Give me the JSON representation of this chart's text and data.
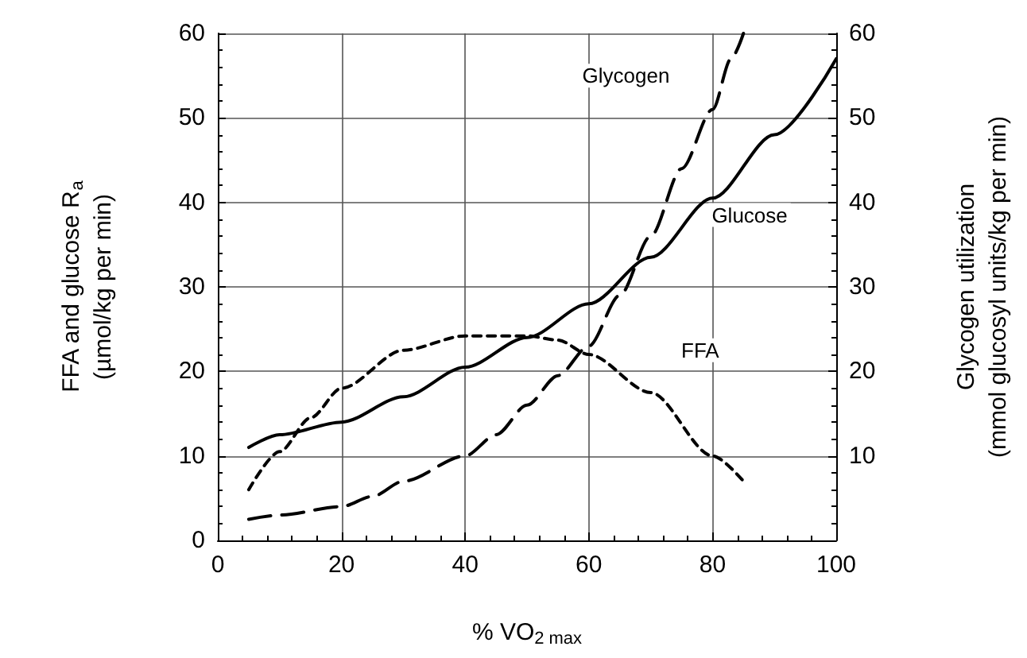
{
  "chart_data": {
    "type": "line",
    "xlabel": "% VO$_{2 max}$",
    "ylabel": "FFA and glucose R$_{a}$\n(µmol/kg per min)",
    "y2label": "Glycogen utilization\n(mmol glucosyl units/kg per min)",
    "xlim": [
      0,
      100
    ],
    "xticks": [
      0,
      20,
      40,
      60,
      80,
      100
    ],
    "ylim": [
      0,
      60
    ],
    "yticks": [
      0,
      10,
      20,
      30,
      40,
      50,
      60
    ],
    "y2lim": [
      0,
      60
    ],
    "y2ticks": [
      {
        "value": 0,
        "label": null
      },
      10,
      20,
      30,
      40,
      50,
      60
    ],
    "grid": true,
    "legend": false,
    "marker": "none",
    "series": [
      {
        "name": "Glucose",
        "color": "#000000",
        "line_style": "solid",
        "x": [
          5,
          10,
          20,
          30,
          40,
          50,
          60,
          70,
          80,
          90,
          100
        ],
        "values": [
          11,
          12.5,
          14,
          17,
          20.5,
          24,
          28,
          33.5,
          40.5,
          48,
          57
        ]
      },
      {
        "name": "FFA",
        "color": "#000000",
        "line_style": "dotted",
        "x": [
          5,
          10,
          15,
          20,
          30,
          40,
          50,
          55,
          60,
          70,
          80,
          85
        ],
        "values": [
          6,
          10.5,
          14.5,
          18,
          22.5,
          24.2,
          24.2,
          23.7,
          22,
          17.5,
          10,
          7
        ]
      },
      {
        "name": "Glycogen",
        "color": "#000000",
        "line_style": "dashed",
        "axis": "y2",
        "x": [
          5,
          10,
          20,
          25,
          30,
          40,
          45,
          50,
          55,
          60,
          65,
          70,
          75,
          80,
          83,
          85
        ],
        "values": [
          2.5,
          3,
          4,
          5.2,
          7,
          10,
          12.5,
          16,
          19.5,
          23,
          29,
          36,
          44,
          51,
          57,
          60
        ]
      }
    ]
  }
}
